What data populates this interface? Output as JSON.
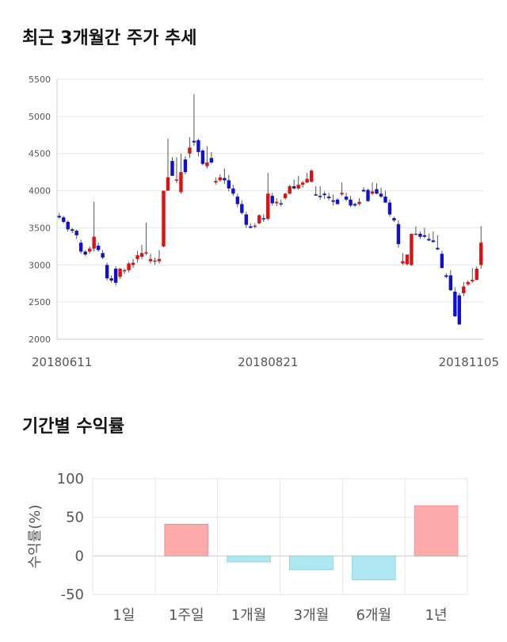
{
  "headings": {
    "price_trend": "최근 3개월간 주가 추세",
    "period_returns": "기간별 수익률"
  },
  "colors": {
    "up": "#dd1111",
    "down": "#1111cc",
    "wick": "#555555",
    "grid": "#e6e6e6",
    "bar_positive": "#ffaaaa",
    "bar_negative": "#aee6f2"
  },
  "chart_data": [
    {
      "type": "candlestick",
      "title": "최근 3개월간 주가 추세",
      "y_ticks": [
        2000,
        2500,
        3000,
        3500,
        4000,
        4500,
        5000,
        5500
      ],
      "ylim": [
        2000,
        5500
      ],
      "x_tick_labels": [
        "20180611",
        "20180821",
        "20181105"
      ],
      "x_tick_index": [
        0,
        48,
        99
      ],
      "grid": true,
      "candles_ohlc": [
        [
          3660,
          3700,
          3620,
          3640
        ],
        [
          3640,
          3660,
          3560,
          3580
        ],
        [
          3580,
          3600,
          3450,
          3480
        ],
        [
          3480,
          3500,
          3430,
          3460
        ],
        [
          3460,
          3480,
          3350,
          3400
        ],
        [
          3300,
          3340,
          3150,
          3180
        ],
        [
          3180,
          3200,
          3120,
          3140
        ],
        [
          3180,
          3250,
          3150,
          3220
        ],
        [
          3220,
          3850,
          3180,
          3380
        ],
        [
          3260,
          3300,
          3180,
          3200
        ],
        [
          3160,
          3200,
          3080,
          3100
        ],
        [
          3000,
          3030,
          2790,
          2820
        ],
        [
          2820,
          2860,
          2760,
          2790
        ],
        [
          2950,
          2980,
          2720,
          2760
        ],
        [
          2840,
          2960,
          2810,
          2950
        ],
        [
          2920,
          2950,
          2880,
          2930
        ],
        [
          2930,
          3040,
          2900,
          3020
        ],
        [
          3000,
          3080,
          2960,
          3030
        ],
        [
          3080,
          3190,
          3030,
          3130
        ],
        [
          3110,
          3270,
          3080,
          3160
        ],
        [
          3160,
          3570,
          3130,
          3170
        ],
        [
          3050,
          3150,
          3020,
          3080
        ],
        [
          3050,
          3100,
          3000,
          3060
        ],
        [
          3050,
          3200,
          3020,
          3080
        ],
        [
          3250,
          4000,
          3240,
          4000
        ],
        [
          4000,
          4700,
          4000,
          4180
        ],
        [
          4400,
          4450,
          4200,
          4200
        ],
        [
          4150,
          4450,
          4100,
          4150
        ],
        [
          3980,
          4500,
          3960,
          4250
        ],
        [
          4420,
          4460,
          4220,
          4250
        ],
        [
          4500,
          4720,
          4440,
          4580
        ],
        [
          4670,
          5300,
          4600,
          4650
        ],
        [
          4680,
          4700,
          4460,
          4520
        ],
        [
          4540,
          4560,
          4340,
          4360
        ],
        [
          4330,
          4600,
          4300,
          4380
        ],
        [
          4440,
          4520,
          4360,
          4380
        ],
        [
          4110,
          4180,
          4080,
          4130
        ],
        [
          4140,
          4220,
          4120,
          4180
        ],
        [
          4170,
          4300,
          4090,
          4140
        ],
        [
          4140,
          4210,
          3990,
          4030
        ],
        [
          4030,
          4080,
          3930,
          3960
        ],
        [
          3920,
          3960,
          3780,
          3820
        ],
        [
          3820,
          3870,
          3680,
          3700
        ],
        [
          3680,
          3720,
          3500,
          3540
        ],
        [
          3520,
          3560,
          3490,
          3500
        ],
        [
          3520,
          3560,
          3490,
          3530
        ],
        [
          3560,
          3680,
          3550,
          3670
        ],
        [
          3630,
          3680,
          3580,
          3620
        ],
        [
          3620,
          4240,
          3600,
          3960
        ],
        [
          3930,
          3970,
          3800,
          3830
        ],
        [
          3830,
          3900,
          3790,
          3850
        ],
        [
          3830,
          3880,
          3790,
          3820
        ],
        [
          3900,
          3970,
          3880,
          3960
        ],
        [
          3960,
          4080,
          3950,
          4060
        ],
        [
          4060,
          4150,
          4020,
          4030
        ],
        [
          4030,
          4200,
          4010,
          4080
        ],
        [
          4080,
          4130,
          4040,
          4110
        ],
        [
          4110,
          4240,
          4100,
          4160
        ],
        [
          4120,
          4290,
          4110,
          4270
        ],
        [
          3950,
          4060,
          3930,
          3940
        ],
        [
          3930,
          4060,
          3880,
          3920
        ],
        [
          3960,
          3990,
          3890,
          3940
        ],
        [
          3920,
          3970,
          3870,
          3900
        ],
        [
          3870,
          3950,
          3800,
          3850
        ],
        [
          3880,
          3900,
          3810,
          3820
        ],
        [
          3950,
          4110,
          3930,
          3970
        ],
        [
          3920,
          3970,
          3860,
          3880
        ],
        [
          3880,
          3930,
          3780,
          3800
        ],
        [
          3820,
          3840,
          3780,
          3800
        ],
        [
          3820,
          3900,
          3800,
          3850
        ],
        [
          4010,
          4050,
          3980,
          3990
        ],
        [
          4010,
          4030,
          3850,
          3860
        ],
        [
          3960,
          4110,
          3940,
          3990
        ],
        [
          4020,
          4100,
          3950,
          3960
        ],
        [
          3960,
          4040,
          3900,
          3920
        ],
        [
          3920,
          4000,
          3830,
          3840
        ],
        [
          3840,
          3880,
          3650,
          3680
        ],
        [
          3630,
          3650,
          3580,
          3600
        ],
        [
          3550,
          3600,
          3230,
          3280
        ],
        [
          3020,
          3160,
          3000,
          3050
        ],
        [
          3010,
          3100,
          2990,
          3140
        ],
        [
          3000,
          3420,
          2990,
          3420
        ],
        [
          3420,
          3520,
          3400,
          3420
        ],
        [
          3420,
          3450,
          3350,
          3380
        ],
        [
          3400,
          3500,
          3360,
          3380
        ],
        [
          3350,
          3420,
          3320,
          3330
        ],
        [
          3330,
          3450,
          3300,
          3310
        ],
        [
          3230,
          3400,
          3200,
          3210
        ],
        [
          3150,
          3190,
          2950,
          2960
        ],
        [
          2860,
          2890,
          2820,
          2840
        ],
        [
          2860,
          2930,
          2650,
          2660
        ],
        [
          2640,
          2700,
          2300,
          2310
        ],
        [
          2590,
          2620,
          2190,
          2200
        ],
        [
          2620,
          2770,
          2580,
          2710
        ],
        [
          2740,
          2790,
          2720,
          2770
        ],
        [
          2780,
          2960,
          2760,
          2800
        ],
        [
          2800,
          2980,
          2790,
          2950
        ],
        [
          3000,
          3520,
          2950,
          3300
        ]
      ]
    },
    {
      "type": "bar",
      "title": "기간별 수익률",
      "ylabel": "수익률(%)",
      "categories": [
        "1일",
        "1주일",
        "1개월",
        "3개월",
        "6개월",
        "1년"
      ],
      "values": [
        0,
        41,
        -8,
        -18,
        -31,
        65
      ],
      "y_ticks": [
        100,
        50,
        0,
        -50
      ],
      "ylim": [
        -50,
        100
      ],
      "grid": true
    }
  ]
}
